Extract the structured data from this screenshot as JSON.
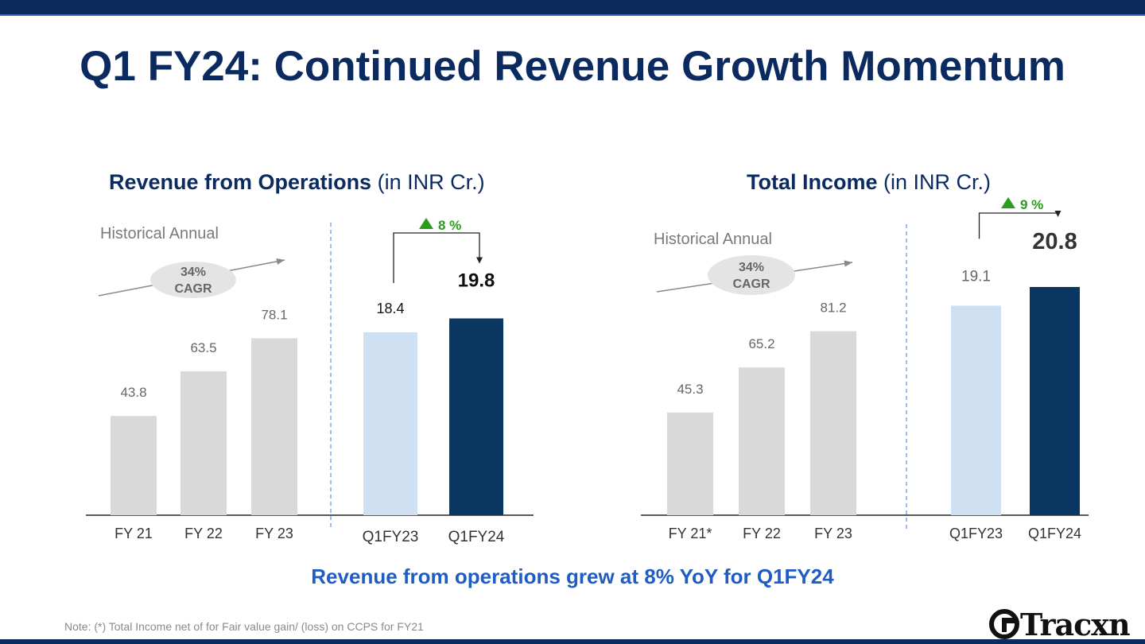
{
  "title": "Q1 FY24: Continued Revenue Growth Momentum",
  "takeaway": "Revenue from operations grew at 8% YoY for Q1FY24",
  "note": "Note: (*) Total Income net of for Fair value gain/ (loss) on CCPS for FY21",
  "logo": "Tracxn",
  "colors": {
    "historical": "#d9d9d9",
    "prior_quarter": "#cfe0f3",
    "current_quarter": "#0a3761",
    "growth": "#2a9d1f",
    "title": "#0b2a5f"
  },
  "chart_data": [
    {
      "type": "bar",
      "title_bold": "Revenue from Operations",
      "title_rest": " (in INR Cr.)",
      "section_label": "Historical Annual",
      "cagr_line1": "34%",
      "cagr_line2": "CAGR",
      "growth_label": "8 %",
      "unit": "INR Cr.",
      "categories": [
        "FY 21",
        "FY 22",
        "FY 23",
        "Q1FY23",
        "Q1FY24"
      ],
      "values": [
        43.8,
        63.5,
        78.1,
        18.4,
        19.8
      ],
      "value_labels": [
        "43.8",
        "63.5",
        "78.1",
        "18.4",
        "19.8"
      ]
    },
    {
      "type": "bar",
      "title_bold": "Total Income",
      "title_rest": " (in INR Cr.)",
      "section_label": "Historical Annual",
      "cagr_line1": "34%",
      "cagr_line2": "CAGR",
      "growth_label": "9 %",
      "unit": "INR Cr.",
      "categories": [
        "FY 21*",
        "FY 22",
        "FY 23",
        "Q1FY23",
        "Q1FY24"
      ],
      "values": [
        45.3,
        65.2,
        81.2,
        19.1,
        20.8
      ],
      "value_labels": [
        "45.3",
        "65.2",
        "81.2",
        "19.1",
        "20.8"
      ]
    }
  ]
}
